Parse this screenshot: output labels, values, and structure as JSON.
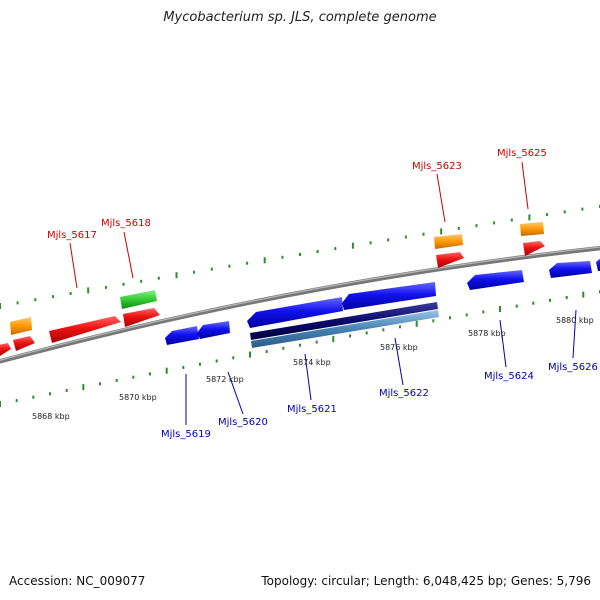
{
  "title": "Mycobacterium sp. JLS, complete genome",
  "footer": {
    "accession": "Accession: NC_009077",
    "summary": "Topology: circular; Length: 6,048,425 bp; Genes: 5,796"
  },
  "scale_labels": [
    "5868 kbp",
    "5870 kbp",
    "5872 kbp",
    "5874 kbp",
    "5876 kbp",
    "5878 kbp",
    "5880 kbp"
  ],
  "genes_forward": [
    {
      "label": "Mjls_5617"
    },
    {
      "label": "Mjls_5618"
    },
    {
      "label": "Mjls_5623"
    },
    {
      "label": "Mjls_5625"
    }
  ],
  "genes_reverse": [
    {
      "label": "Mjls_5619"
    },
    {
      "label": "Mjls_5620"
    },
    {
      "label": "Mjls_5621"
    },
    {
      "label": "Mjls_5622"
    },
    {
      "label": "Mjls_5624"
    },
    {
      "label": "Mjls_5626"
    }
  ],
  "colors": {
    "forward_label": "#cc0000",
    "reverse_label": "#0000b0",
    "cds_forward": "#ee1111",
    "cds_reverse": "#1111ee",
    "trna": "#33cc33",
    "orange": "#ff9900",
    "backbone": "#888888",
    "tick": "#2e8b2e",
    "dark_navy": "#0a0a6a",
    "steel": "#4682b4"
  }
}
